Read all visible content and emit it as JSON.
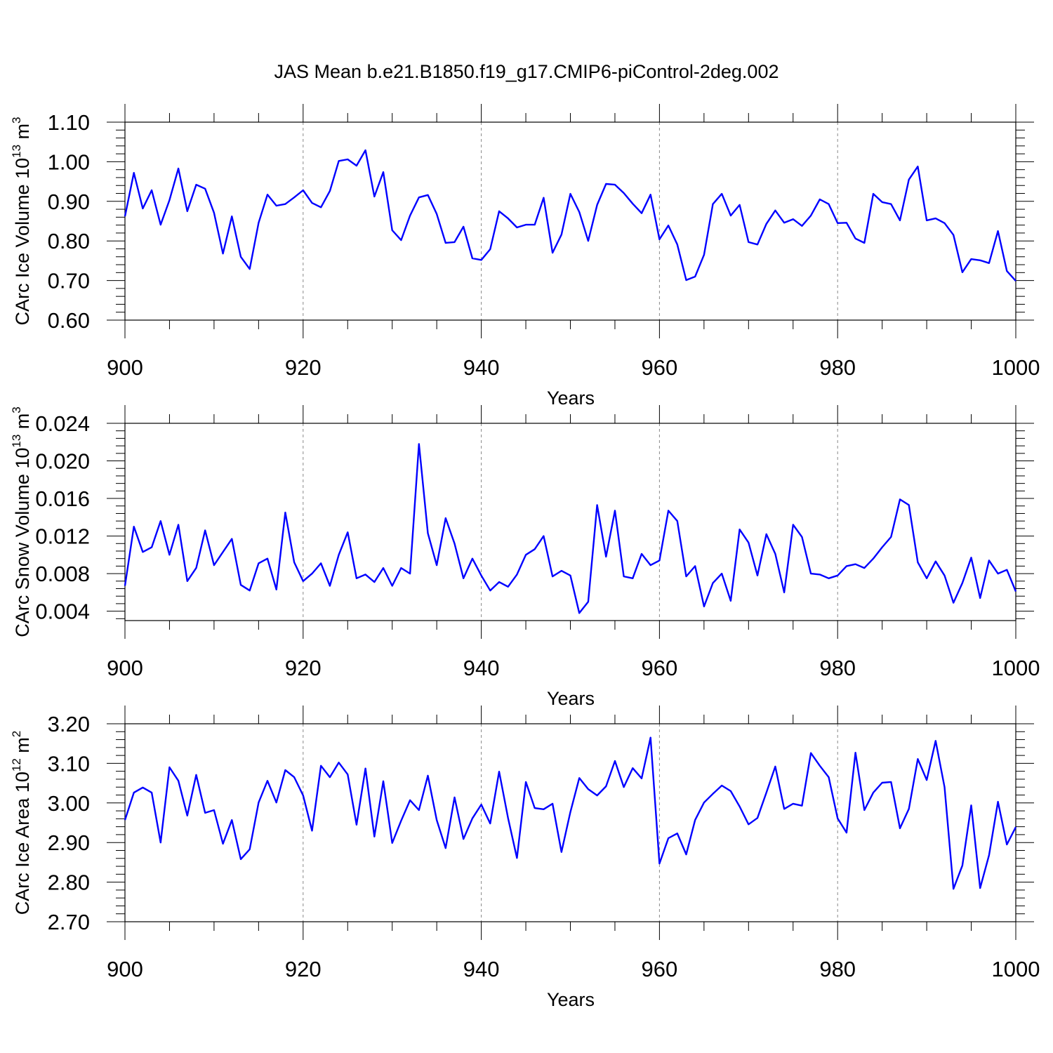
{
  "colors": {
    "line": "#0000ff",
    "axis": "#000000",
    "grid": "#888888"
  },
  "chart_data": [
    {
      "type": "line",
      "title": "JAS Mean b.e21.B1850.f19_g17.CMIP6-piControl-2deg.002",
      "xlabel": "Years",
      "ylabel": "CArc Ice Volume 10",
      "ylabel_sup": "13",
      "ylabel_unit": " m",
      "ylabel_unit_sup": "3",
      "xlim": [
        900,
        1000
      ],
      "ylim": [
        0.6,
        1.1
      ],
      "xticks": [
        "900",
        "920",
        "940",
        "960",
        "980",
        "1000"
      ],
      "yticks": [
        "0.60",
        "0.70",
        "0.80",
        "0.90",
        "1.00",
        "1.10"
      ],
      "grid": "dashed vertical at major x ticks",
      "x_start": 900,
      "values": [
        0.862,
        0.972,
        0.882,
        0.928,
        0.841,
        0.903,
        0.983,
        0.875,
        0.942,
        0.932,
        0.871,
        0.768,
        0.862,
        0.76,
        0.729,
        0.846,
        0.917,
        0.889,
        0.893,
        0.91,
        0.928,
        0.896,
        0.885,
        0.926,
        1.002,
        1.006,
        0.99,
        1.029,
        0.912,
        0.974,
        0.827,
        0.802,
        0.864,
        0.91,
        0.916,
        0.868,
        0.795,
        0.797,
        0.836,
        0.756,
        0.752,
        0.779,
        0.875,
        0.857,
        0.834,
        0.841,
        0.841,
        0.909,
        0.77,
        0.816,
        0.919,
        0.873,
        0.8,
        0.891,
        0.944,
        0.942,
        0.921,
        0.894,
        0.87,
        0.917,
        0.804,
        0.839,
        0.791,
        0.701,
        0.71,
        0.765,
        0.893,
        0.919,
        0.864,
        0.891,
        0.797,
        0.791,
        0.843,
        0.877,
        0.846,
        0.855,
        0.838,
        0.864,
        0.905,
        0.893,
        0.845,
        0.846,
        0.806,
        0.795,
        0.919,
        0.898,
        0.893,
        0.852,
        0.955,
        0.988,
        0.852,
        0.857,
        0.845,
        0.815,
        0.721,
        0.754,
        0.751,
        0.744,
        0.825,
        0.724,
        0.699
      ]
    },
    {
      "type": "line",
      "xlabel": "Years",
      "ylabel": "CArc Snow Volume 10",
      "ylabel_sup": "13",
      "ylabel_unit": " m",
      "ylabel_unit_sup": "3",
      "xlim": [
        900,
        1000
      ],
      "ylim": [
        0.003,
        0.024
      ],
      "xticks": [
        "900",
        "920",
        "940",
        "960",
        "980",
        "1000"
      ],
      "yticks": [
        "0.004",
        "0.008",
        "0.012",
        "0.016",
        "0.020",
        "0.024"
      ],
      "grid": "dashed vertical at major x ticks",
      "x_start": 900,
      "values": [
        0.0067,
        0.013,
        0.0103,
        0.0108,
        0.0136,
        0.01,
        0.0132,
        0.0072,
        0.0086,
        0.0126,
        0.0089,
        0.0103,
        0.0117,
        0.0068,
        0.0062,
        0.0091,
        0.0096,
        0.0063,
        0.0145,
        0.0092,
        0.0072,
        0.008,
        0.0091,
        0.0067,
        0.01,
        0.0124,
        0.0075,
        0.0079,
        0.0071,
        0.0086,
        0.0067,
        0.0086,
        0.008,
        0.0218,
        0.0123,
        0.0089,
        0.0139,
        0.0112,
        0.0075,
        0.0096,
        0.0078,
        0.0062,
        0.0071,
        0.0066,
        0.0079,
        0.01,
        0.0106,
        0.012,
        0.0077,
        0.0083,
        0.0078,
        0.0038,
        0.005,
        0.0153,
        0.0098,
        0.0147,
        0.0077,
        0.0075,
        0.0101,
        0.0089,
        0.0094,
        0.0147,
        0.0136,
        0.0077,
        0.0088,
        0.0045,
        0.007,
        0.008,
        0.0051,
        0.0127,
        0.0113,
        0.0078,
        0.0122,
        0.0101,
        0.006,
        0.0132,
        0.0119,
        0.008,
        0.0079,
        0.0075,
        0.0078,
        0.0088,
        0.009,
        0.0086,
        0.0096,
        0.0108,
        0.0119,
        0.0159,
        0.0153,
        0.0092,
        0.0075,
        0.0093,
        0.0078,
        0.0049,
        0.007,
        0.0097,
        0.0054,
        0.0094,
        0.008,
        0.0084,
        0.0061
      ]
    },
    {
      "type": "line",
      "xlabel": "Years",
      "ylabel": "CArc Ice Area 10",
      "ylabel_sup": "12",
      "ylabel_unit": " m",
      "ylabel_unit_sup": "2",
      "xlim": [
        900,
        1000
      ],
      "ylim": [
        2.7,
        3.2
      ],
      "xticks": [
        "900",
        "920",
        "940",
        "960",
        "980",
        "1000"
      ],
      "yticks": [
        "2.70",
        "2.80",
        "2.90",
        "3.00",
        "3.10",
        "3.20"
      ],
      "grid": "dashed vertical at major x ticks",
      "x_start": 900,
      "values": [
        2.957,
        3.026,
        3.039,
        3.026,
        2.9,
        3.09,
        3.056,
        2.968,
        3.071,
        2.975,
        2.982,
        2.897,
        2.957,
        2.858,
        2.883,
        3.001,
        3.056,
        3.001,
        3.083,
        3.065,
        3.019,
        2.93,
        3.094,
        3.065,
        3.102,
        3.072,
        2.945,
        3.087,
        2.915,
        3.055,
        2.899,
        2.955,
        3.007,
        2.982,
        3.069,
        2.957,
        2.886,
        3.014,
        2.909,
        2.961,
        2.996,
        2.948,
        3.079,
        2.962,
        2.861,
        3.053,
        2.987,
        2.984,
        2.998,
        2.876,
        2.977,
        3.063,
        3.035,
        3.019,
        3.042,
        3.106,
        3.04,
        3.088,
        3.062,
        3.165,
        2.847,
        2.911,
        2.923,
        2.87,
        2.957,
        3.001,
        3.023,
        3.044,
        3.03,
        2.991,
        2.946,
        2.962,
        3.026,
        3.092,
        2.985,
        2.998,
        2.993,
        3.126,
        3.094,
        3.065,
        2.961,
        2.925,
        3.127,
        2.982,
        3.026,
        3.051,
        3.053,
        2.936,
        2.985,
        3.111,
        3.058,
        3.157,
        3.04,
        2.783,
        2.842,
        2.994,
        2.785,
        2.868,
        3.003,
        2.895,
        2.939
      ]
    }
  ]
}
